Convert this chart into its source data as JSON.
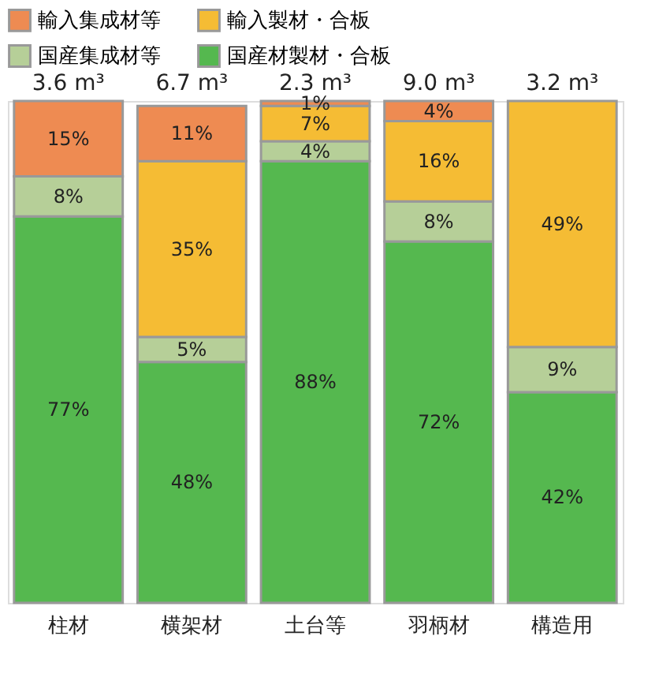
{
  "chart_data": {
    "type": "bar",
    "stacked": true,
    "categories": [
      "柱材",
      "横架材",
      "土台等",
      "羽柄材",
      "構造用"
    ],
    "series": [
      {
        "name": "国産材製材・合板",
        "color": "#55b84f",
        "values": [
          77,
          48,
          88,
          72,
          42
        ],
        "value_labels": [
          "77%",
          "48%",
          "88%",
          "72%",
          "42%"
        ]
      },
      {
        "name": "国産集成材等",
        "color": "#b6cf98",
        "values": [
          8,
          5,
          4,
          8,
          9
        ],
        "value_labels": [
          "8%",
          "5%",
          "4%",
          "8%",
          "9%"
        ]
      },
      {
        "name": "輸入製材・合板",
        "color": "#f5bc34",
        "values": [
          null,
          35,
          7,
          16,
          49
        ],
        "value_labels": [
          null,
          "35%",
          "7%",
          "16%",
          "49%"
        ]
      },
      {
        "name": "輸入集成材等",
        "color": "#ee8b52",
        "values": [
          15,
          11,
          1,
          4,
          null
        ],
        "value_labels": [
          "15%",
          "11%",
          "1%",
          "4%",
          null
        ]
      }
    ],
    "tick_labels": "x",
    "legend": "top",
    "annotations": [
      "3.6 m³",
      "6.7 m³",
      "2.3 m³",
      "9.0 m³",
      "3.2 m³"
    ]
  }
}
